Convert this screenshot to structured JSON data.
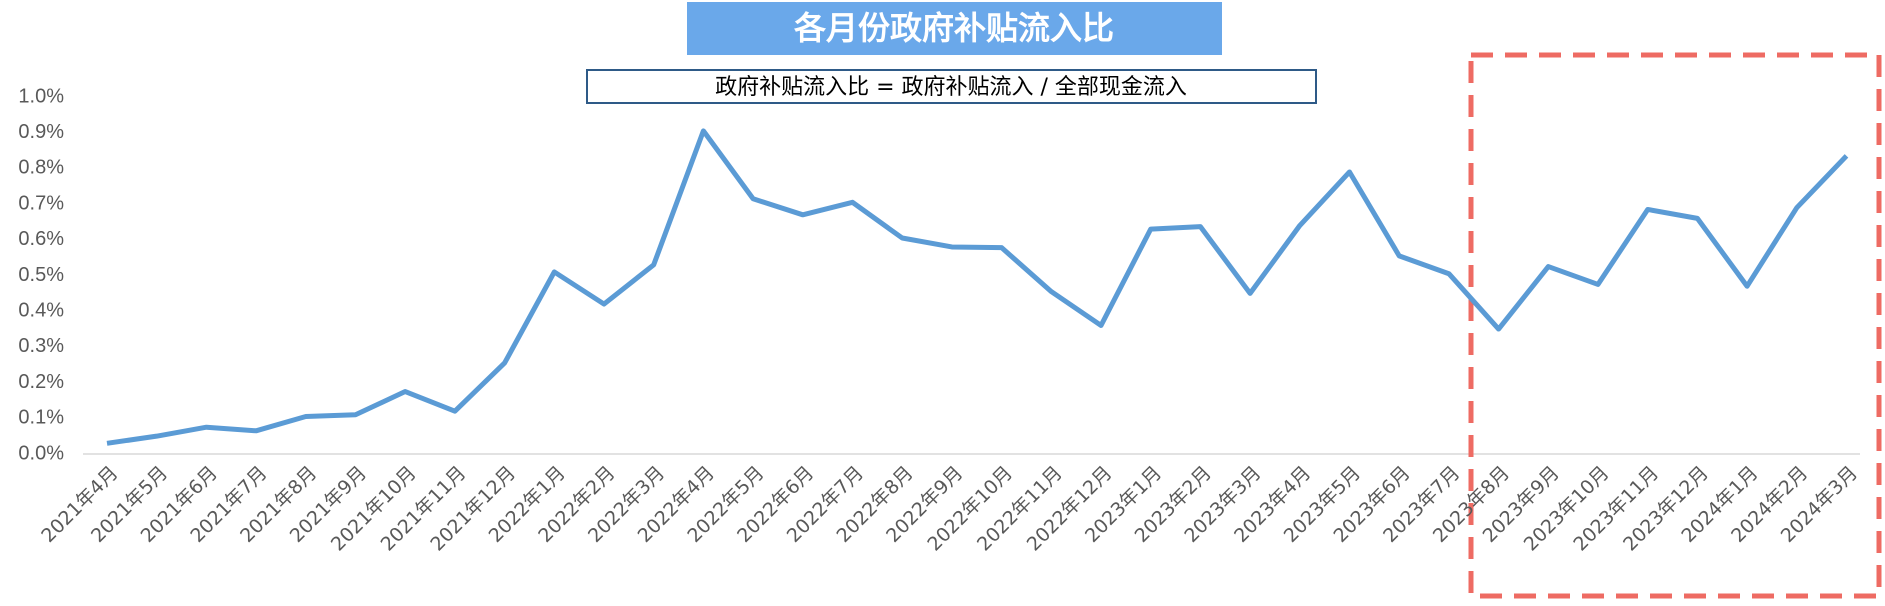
{
  "chart_data": {
    "type": "line",
    "title": "各月份政府补贴流入比",
    "subtitle": "政府补贴流入比 = 政府补贴流入 / 全部现金流入",
    "categories": [
      "2021年4月",
      "2021年5月",
      "2021年6月",
      "2021年7月",
      "2021年8月",
      "2021年9月",
      "2021年10月",
      "2021年11月",
      "2021年12月",
      "2022年1月",
      "2022年2月",
      "2022年3月",
      "2022年4月",
      "2022年5月",
      "2022年6月",
      "2022年7月",
      "2022年8月",
      "2022年9月",
      "2022年10月",
      "2022年11月",
      "2022年12月",
      "2023年1月",
      "2023年2月",
      "2023年3月",
      "2023年4月",
      "2023年5月",
      "2023年6月",
      "2023年7月",
      "2023年8月",
      "2023年9月",
      "2023年10月",
      "2023年11月",
      "2023年12月",
      "2024年1月",
      "2024年2月",
      "2024年3月"
    ],
    "values": [
      0.03,
      0.05,
      0.075,
      0.065,
      0.105,
      0.11,
      0.175,
      0.12,
      0.255,
      0.51,
      0.42,
      0.53,
      0.905,
      0.715,
      0.67,
      0.705,
      0.605,
      0.58,
      0.578,
      0.455,
      0.36,
      0.63,
      0.637,
      0.45,
      0.64,
      0.79,
      0.555,
      0.505,
      0.35,
      0.525,
      0.475,
      0.685,
      0.66,
      0.47,
      0.69,
      0.835
    ],
    "color": "#5b9bd5",
    "ylim": [
      0,
      1.0
    ],
    "yticks": [
      {
        "value": 0,
        "label": "0.0%"
      },
      {
        "value": 0.1,
        "label": "0.1%"
      },
      {
        "value": 0.2,
        "label": "0.2%"
      },
      {
        "value": 0.3,
        "label": "0.3%"
      },
      {
        "value": 0.4,
        "label": "0.4%"
      },
      {
        "value": 0.5,
        "label": "0.5%"
      },
      {
        "value": 0.6,
        "label": "0.6%"
      },
      {
        "value": 0.7,
        "label": "0.7%"
      },
      {
        "value": 0.8,
        "label": "0.8%"
      },
      {
        "value": 0.9,
        "label": "0.9%"
      },
      {
        "value": 1.0,
        "label": "1.0%"
      }
    ],
    "grid": false
  }
}
